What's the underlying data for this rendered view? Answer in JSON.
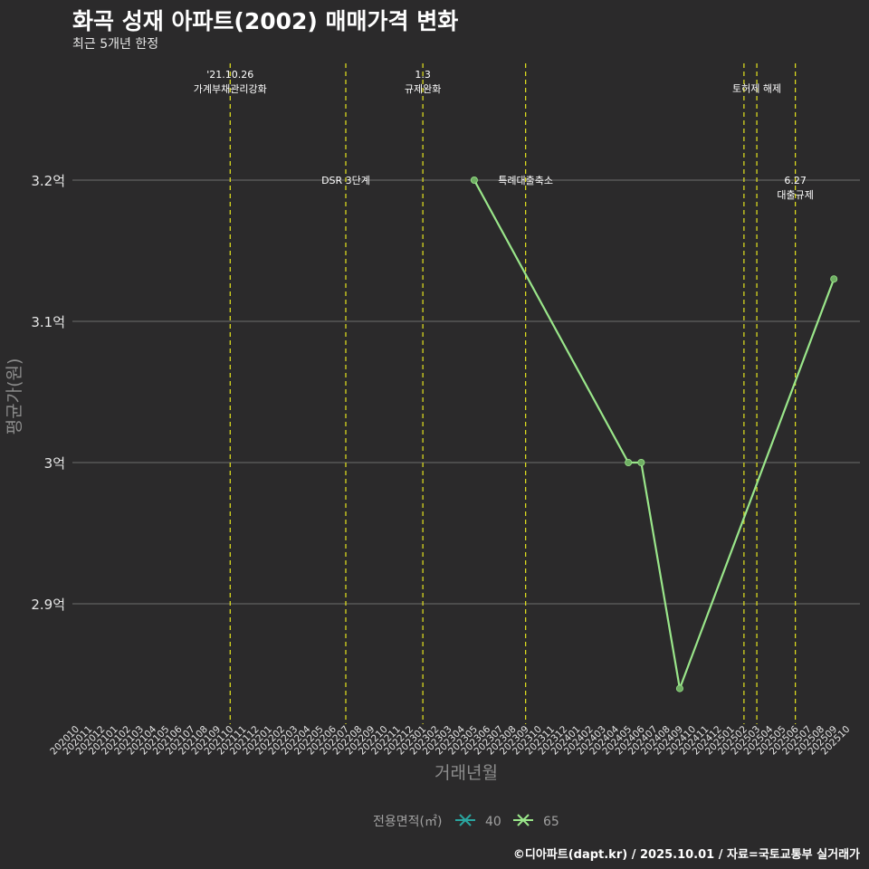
{
  "chart_data": {
    "type": "line",
    "title": "화곡 성재 아파트(2002) 매매가격 변화",
    "subtitle": "최근 5개년 한정",
    "caption": "©디아파트(dapt.kr) / 2025.10.01 / 자료=국토교통부 실거래가",
    "xlabel": "거래년월",
    "ylabel": "평균가(원)",
    "y_ticks": [
      {
        "value": 2.9,
        "label": "2.9억"
      },
      {
        "value": 3.0,
        "label": "3억"
      },
      {
        "value": 3.1,
        "label": "3.1억"
      },
      {
        "value": 3.2,
        "label": "3.2억"
      }
    ],
    "x_categories": [
      "202010",
      "202011",
      "202012",
      "202101",
      "202102",
      "202103",
      "202104",
      "202105",
      "202106",
      "202107",
      "202108",
      "202109",
      "202110",
      "202111",
      "202112",
      "202201",
      "202202",
      "202203",
      "202204",
      "202205",
      "202206",
      "202207",
      "202208",
      "202209",
      "202210",
      "202211",
      "202212",
      "202301",
      "202302",
      "202303",
      "202304",
      "202305",
      "202306",
      "202307",
      "202308",
      "202309",
      "202310",
      "202311",
      "202312",
      "202401",
      "202402",
      "202403",
      "202404",
      "202405",
      "202406",
      "202407",
      "202408",
      "202409",
      "202410",
      "202411",
      "202412",
      "202501",
      "202502",
      "202503",
      "202504",
      "202505",
      "202506",
      "202507",
      "202508",
      "202509",
      "202510"
    ],
    "legend": {
      "title": "전용면적(㎡)",
      "position": "bottom",
      "items": [
        {
          "label": "40",
          "color": "#2aa6a0"
        },
        {
          "label": "65",
          "color": "#9ae68a"
        }
      ]
    },
    "series": [
      {
        "name": "65",
        "color": "#9ae68a",
        "points": [
          {
            "x": "202305",
            "y": 3.2
          },
          {
            "x": "202405",
            "y": 3.0
          },
          {
            "x": "202406",
            "y": 3.0
          },
          {
            "x": "202409",
            "y": 2.84
          },
          {
            "x": "202509",
            "y": 3.13
          }
        ]
      }
    ],
    "events": [
      {
        "x": "202110",
        "label_lines": [
          "'21.10.26",
          "가계부채관리강화"
        ],
        "label_y": 3.27
      },
      {
        "x": "202207",
        "label_lines": [
          "DSR 3단계"
        ],
        "label_y": 3.2
      },
      {
        "x": "202301",
        "label_lines": [
          "1.3",
          "규제완화"
        ],
        "label_y": 3.27
      },
      {
        "x": "202309",
        "label_lines": [
          "특례대출축소"
        ],
        "label_y": 3.2
      },
      {
        "x": "202502",
        "label_lines": [],
        "label_y": 3.27
      },
      {
        "x": "202503",
        "label_lines": [
          "토허제 해제"
        ],
        "label_y": 3.265
      },
      {
        "x": "202506",
        "label_lines": [
          "6.27",
          "대출규제"
        ],
        "label_y": 3.195
      }
    ]
  }
}
